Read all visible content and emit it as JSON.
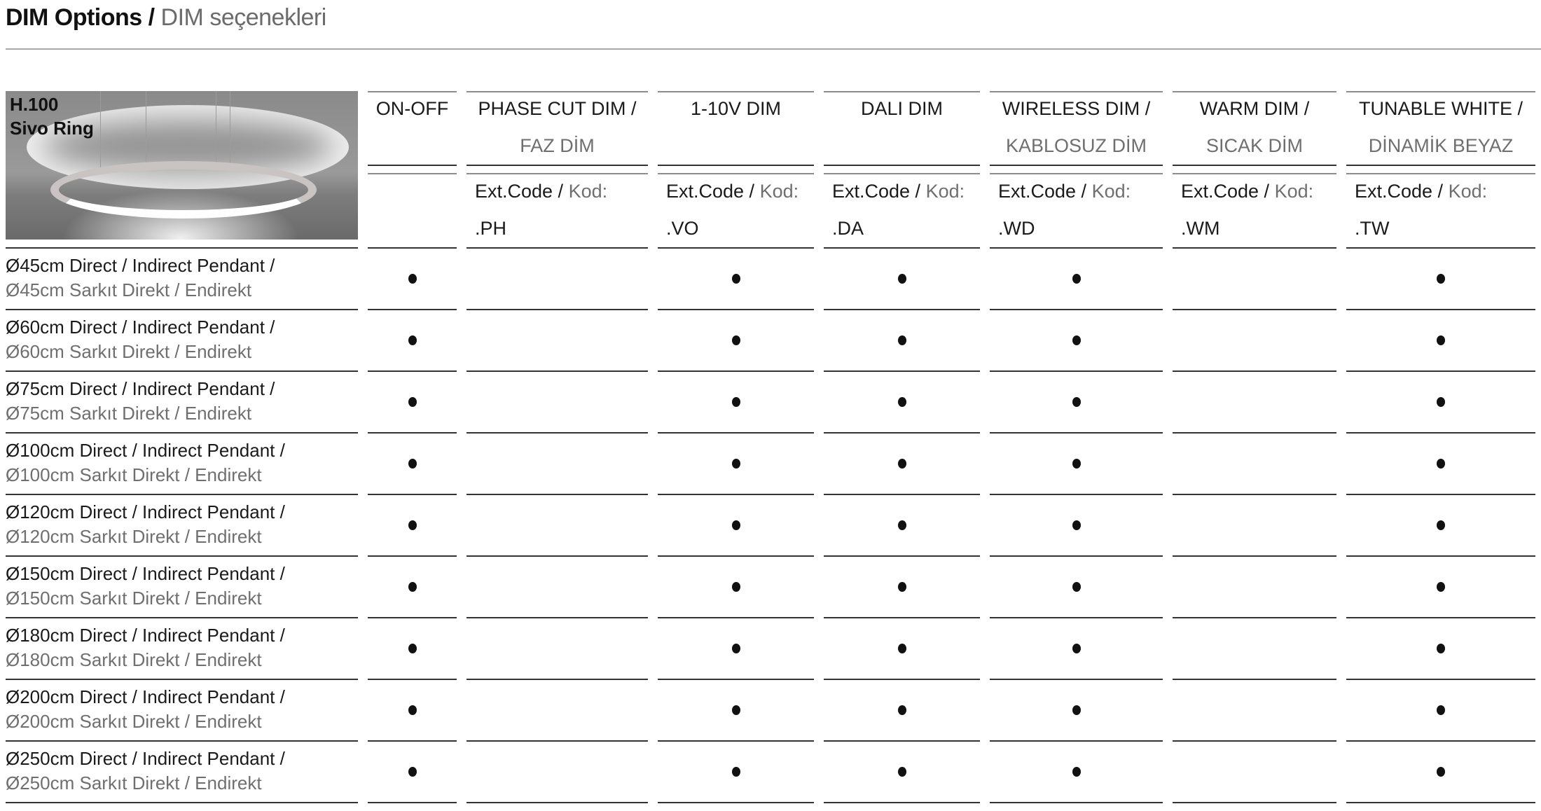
{
  "title": {
    "main": "DIM Options /",
    "sub": "DIM seçenekleri"
  },
  "product": {
    "code": "H.100",
    "name": "Sivo Ring"
  },
  "code_label": {
    "main": "Ext.Code /",
    "sub": "Kod:"
  },
  "columns": [
    {
      "line1": "ON-OFF",
      "line2": "",
      "code": ""
    },
    {
      "line1": "PHASE CUT DIM /",
      "line2": "FAZ DİM",
      "code": ".PH"
    },
    {
      "line1": "1-10V DIM",
      "line2": "",
      "code": ".VO"
    },
    {
      "line1": "DALI DIM",
      "line2": "",
      "code": ".DA"
    },
    {
      "line1": "WIRELESS DIM /",
      "line2": "KABLOSUZ DİM",
      "code": ".WD"
    },
    {
      "line1": "WARM DIM /",
      "line2": "SICAK DİM",
      "code": ".WM"
    },
    {
      "line1": "TUNABLE WHITE /",
      "line2": "DİNAMİK BEYAZ",
      "code": ".TW"
    }
  ],
  "rows": [
    {
      "en": "Ø45cm Direct / Indirect Pendant /",
      "tr": "Ø45cm Sarkıt Direkt / Endirekt",
      "support": [
        true,
        false,
        true,
        true,
        true,
        false,
        true
      ]
    },
    {
      "en": "Ø60cm Direct / Indirect Pendant /",
      "tr": "Ø60cm Sarkıt Direkt / Endirekt",
      "support": [
        true,
        false,
        true,
        true,
        true,
        false,
        true
      ]
    },
    {
      "en": "Ø75cm Direct / Indirect Pendant /",
      "tr": "Ø75cm Sarkıt Direkt / Endirekt",
      "support": [
        true,
        false,
        true,
        true,
        true,
        false,
        true
      ]
    },
    {
      "en": "Ø100cm Direct / Indirect Pendant /",
      "tr": "Ø100cm Sarkıt Direkt / Endirekt",
      "support": [
        true,
        false,
        true,
        true,
        true,
        false,
        true
      ]
    },
    {
      "en": "Ø120cm Direct / Indirect Pendant /",
      "tr": "Ø120cm Sarkıt Direkt / Endirekt",
      "support": [
        true,
        false,
        true,
        true,
        true,
        false,
        true
      ]
    },
    {
      "en": "Ø150cm Direct / Indirect Pendant /",
      "tr": "Ø150cm Sarkıt Direkt / Endirekt",
      "support": [
        true,
        false,
        true,
        true,
        true,
        false,
        true
      ]
    },
    {
      "en": "Ø180cm Direct / Indirect Pendant /",
      "tr": "Ø180cm Sarkıt Direkt / Endirekt",
      "support": [
        true,
        false,
        true,
        true,
        true,
        false,
        true
      ]
    },
    {
      "en": "Ø200cm Direct / Indirect Pendant /",
      "tr": "Ø200cm Sarkıt Direkt / Endirekt",
      "support": [
        true,
        false,
        true,
        true,
        true,
        false,
        true
      ]
    },
    {
      "en": "Ø250cm Direct / Indirect Pendant /",
      "tr": "Ø250cm Sarkıt Direkt / Endirekt",
      "support": [
        true,
        false,
        true,
        true,
        true,
        false,
        true
      ]
    }
  ]
}
